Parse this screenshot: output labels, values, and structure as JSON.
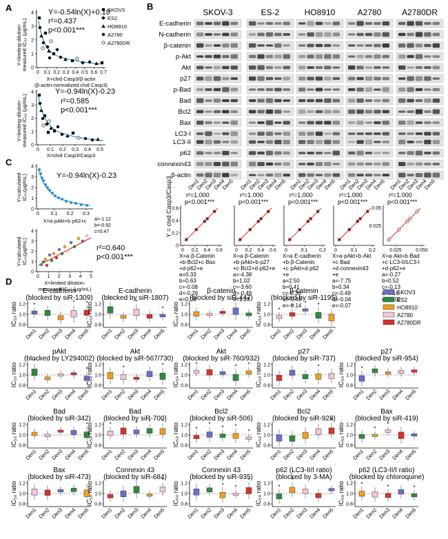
{
  "panel_letters": {
    "a": "A",
    "b": "B",
    "c": "C",
    "d": "D"
  },
  "panel_a": {
    "top": {
      "eq": "Y=-0.54ln(X)+0.18",
      "r2": "r²=0.437",
      "p": "p<0.001***",
      "ylabel1": "Y=limiting dilution-",
      "ylabel2": "measured IC₅₀ (μg/mL)",
      "xlabel1": "X=clvd Casp3/β-actin",
      "xlabel2": "(β-actin-normalized clvd Casp3)",
      "yticks": [
        "4",
        "3",
        "2",
        "1",
        "0"
      ],
      "xticks": [
        "0",
        "0.1",
        "0.2",
        "0.3",
        "0.4",
        "0.5",
        "0.6",
        "0.7"
      ]
    },
    "bottom": {
      "eq": "Y=-0.94ln(X)-0.23",
      "r2": "r²=0.585",
      "p": "p<0.001***",
      "ylabel1": "Y=limiting dilution-",
      "ylabel2": "measured IC₅₀ (μg/mL)",
      "xlabel": "X=clvd Casp3/Casp3",
      "yticks": [
        "4",
        "3",
        "2",
        "1",
        "0"
      ],
      "xticks": [
        "0",
        "0.1",
        "0.2",
        "0.3",
        "0.4",
        "0.5"
      ]
    },
    "legend": [
      "SKOV3",
      "ES2",
      "HO8910",
      "A2780",
      "A2780DR"
    ]
  },
  "panel_b": {
    "cell_lines": [
      "SKOV-3",
      "ES-2",
      "HO8910",
      "A2780",
      "A2780DR"
    ],
    "proteins": [
      "E-cadherin",
      "N-cadherin",
      "β-catenin",
      "p-Akt",
      "Akt",
      "p27",
      "p-Bad",
      "Bad",
      "Bcl2",
      "Bax",
      "LC3-I",
      "LC3-II",
      "p62",
      "connexin43",
      "β-actin"
    ],
    "lanes": [
      "Den1",
      "Den2",
      "Den3",
      "Den4",
      "Den5"
    ],
    "yaxis": "Y = clvd Casp3/Casp3",
    "plots": [
      {
        "r2": "r²=1.000",
        "p": "p<0.001***",
        "yticks": [
          "0.6",
          "0.4",
          "0.2",
          "0"
        ],
        "xticks": [
          "0",
          "0.2",
          "0.4",
          "0.6"
        ],
        "formula": [
          "X=a·β-Catenin",
          "+b·Bcl2+c·Bax",
          "+d·p62+e"
        ],
        "coef": [
          "a=0.33",
          "b=0.63",
          "c=-0.08",
          "d=-0.26",
          "e=0.08"
        ]
      },
      {
        "r2": "r²=1.000",
        "p": "p<0.001***",
        "xticks": [
          "0",
          "0.2",
          "0.4",
          "0.6"
        ],
        "formula": [
          "X=a·β-Catenin",
          "+b·pAkt+b·p27",
          "+c·Bcl2+d·p62+e"
        ],
        "coef": [
          "a=-4.38",
          "b=1.02",
          "c=-3.60",
          "d=-0.49",
          "e=1.28"
        ]
      },
      {
        "r2": "r²=1.000",
        "p": "p<0.001***",
        "xticks": [
          "0",
          "0.1",
          "0.2"
        ],
        "formula": [
          "X=a·E-cadherin",
          "+b·β-Catenin",
          "+c·pAkt+d·p62",
          "+e"
        ],
        "coef": [
          "a=2.50",
          "b=0.41",
          "c=-0.36",
          "d=-0.49",
          "e=-0.14"
        ]
      },
      {
        "r2": "r²=1.000",
        "p": "p<0.001***",
        "xticks": [
          "0",
          "0.1",
          "0.2"
        ],
        "formula": [
          "X=a·pAkt+b·Akt",
          "+c·Bad",
          "+d·connexin43",
          "+e"
        ],
        "coef": [
          "a=-7.75",
          "b=0.34",
          "c=-0.49",
          "d=-0.04",
          "e=-0.07"
        ]
      },
      {
        "r2": "r²=1.000",
        "p": "p<0.001***",
        "ytop": "0.05",
        "ymid": "0.025",
        "xticks": [
          "0.025",
          "0.050"
        ],
        "formula": [
          "X=a·Akt+b·Bad",
          "+c·LC3-II/LC3-I",
          "+d·p62+e"
        ],
        "coef": [
          "a=-0.27",
          "b=0.52",
          "c=-0.13",
          "d=0.16",
          "e=-0.02"
        ]
      }
    ]
  },
  "panel_c": {
    "top": {
      "eq": "Y=-0.94ln(X)-0.23",
      "ylabel1": "Y=calculated",
      "ylabel2": "IC₅₀(μg/mL)",
      "xlabel": "X=a·pAkt+b·p62+c",
      "yticks": [
        "4",
        "3",
        "2",
        "1",
        "0"
      ],
      "xticks": [
        "0",
        "0.1",
        "0.2",
        "0.3"
      ],
      "coef": [
        "a=-1.12",
        "b=-0.92",
        "c=0.47"
      ]
    },
    "bottom": {
      "r2": "r²=0.640",
      "p": "p<0.001***",
      "ylabel1": "Y=calculated",
      "ylabel2": "IC₅₀(μg/mL)",
      "xlabel1": "X=limited dilution-",
      "xlabel2": "measured IC₅₀ (μg/mL)",
      "yticks": [
        "4",
        "3",
        "2",
        "1",
        "0"
      ],
      "xticks": [
        "0",
        "1",
        "2",
        "3",
        "4",
        "5"
      ]
    }
  },
  "panel_d": {
    "ylabel": "IC₅₀ ratio",
    "dens": [
      "Den1",
      "Den2",
      "Den3",
      "Den4",
      "Den5"
    ],
    "legend": [
      "SKOV3",
      "ES2",
      "HO8910",
      "A2780",
      "A2780DR"
    ],
    "colors": {
      "SKOV3": "#6a6fc9",
      "ES2": "#2e8b3e",
      "HO8910": "#f0a020",
      "A2780": "#f4c6dd",
      "A2780DR": "#d8332c"
    },
    "rows": [
      [
        {
          "t1": "E-cadherin",
          "t2": "(blocked by siR-1309)",
          "yt": [
            "1.2",
            "1.0",
            "0.8"
          ]
        },
        {
          "t1": "E-cadherin",
          "t2": "(blocked by siR-1807)",
          "yt": [
            "1.2",
            "1.0",
            "0.8"
          ]
        },
        {
          "t1": "β-catenin",
          "t2": "(blocked by siR-447)",
          "yt": [
            "1.2",
            "1.0",
            "0.8"
          ]
        },
        {
          "t1": "β-catenin",
          "t2": "(blocked by siR-1195)",
          "yt": [
            "1.2",
            "1.0",
            "0.8"
          ]
        }
      ],
      [
        {
          "t1": "pAkt",
          "t2": "(blocked by LY294002)",
          "yt": [
            "1.2",
            "1.0",
            "0.8"
          ]
        },
        {
          "t1": "Akt",
          "t2": "(blocked by siR-567/730)",
          "yt": [
            "1.2",
            "1.0",
            "0.8"
          ]
        },
        {
          "t1": "Akt",
          "t2": "(blocked by siR-760/932)",
          "yt": [
            "1.2",
            "1.0",
            "0.8"
          ]
        },
        {
          "t1": "p27",
          "t2": "(blocked by siR-737)",
          "yt": [
            "1.2",
            "1.0",
            "0.8"
          ]
        },
        {
          "t1": "p27",
          "t2": "(blocked by siR-954)",
          "yt": [
            "1.2",
            "1.0",
            "0.8"
          ]
        }
      ],
      [
        {
          "t1": "Bad",
          "t2": "(blocked by siR-342)",
          "yt": [
            "1.2",
            "1.0",
            "0.8"
          ]
        },
        {
          "t1": "Bad",
          "t2": "(blocked by siR-700)",
          "yt": [
            "1.2",
            "1.0",
            "0.8"
          ]
        },
        {
          "t1": "Bcl2",
          "t2": "(blocked by siR-506)",
          "yt": [
            "1.2",
            "1.0",
            "0.8"
          ]
        },
        {
          "t1": "Bcl2",
          "t2": "(blocked by siR-928)",
          "yt": [
            "1.2",
            "1.0",
            "0.8"
          ]
        },
        {
          "t1": "Bax",
          "t2": "(blocked by siR-419)",
          "yt": [
            "1.2",
            "1.0",
            "0.8"
          ]
        }
      ],
      [
        {
          "t1": "Bax",
          "t2": "(blocked by siR-473)",
          "yt": [
            "1.2",
            "1.0",
            "0.8"
          ]
        },
        {
          "t1": "Connexin 43",
          "t2": "(blocked by siR-684)",
          "yt": [
            "1.2",
            "1.0",
            "0.8"
          ]
        },
        {
          "t1": "Connexin 43",
          "t2": "(blocked by siR-935)",
          "yt": [
            "1.2",
            "1.0",
            "0.8"
          ]
        },
        {
          "t1": "p62 (LC3-II/I ratio)",
          "t2": "(blocked by 3-MA)",
          "yt": [
            "1.2",
            "1.0",
            "0.8"
          ]
        },
        {
          "t1": "p62 (LC3-II/I ratio)",
          "t2": "(blocked by chloroquine)",
          "yt": [
            "1.2",
            "1.0",
            "0.8"
          ]
        }
      ]
    ]
  }
}
